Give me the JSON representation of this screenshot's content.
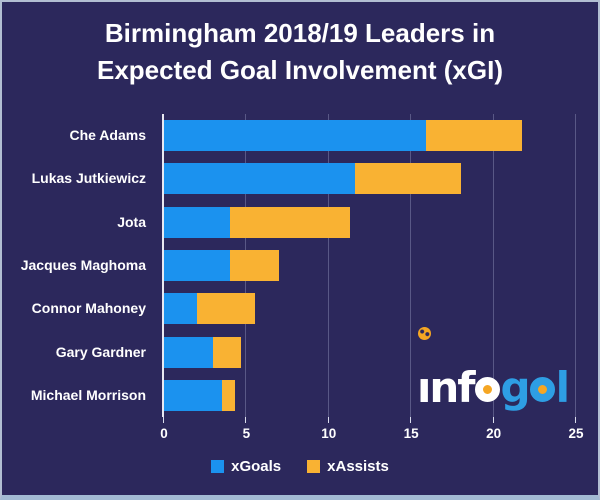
{
  "title": {
    "line1": "Birmingham 2018/19 Leaders in",
    "line2": "Expected Goal Involvement (xGI)"
  },
  "chart_data": {
    "type": "bar",
    "orientation": "horizontal",
    "stacked": true,
    "title": "Birmingham 2018/19 Leaders in Expected Goal Involvement (xGI)",
    "categories": [
      "Che Adams",
      "Lukas Jutkiewicz",
      "Jota",
      "Jacques Maghoma",
      "Connor Mahoney",
      "Gary Gardner",
      "Michael Morrison"
    ],
    "series": [
      {
        "name": "xGoals",
        "color": "#1b92ef",
        "values": [
          15.9,
          11.6,
          4.0,
          4.0,
          2.0,
          3.0,
          3.5
        ]
      },
      {
        "name": "xAssists",
        "color": "#f9b233",
        "values": [
          5.8,
          6.4,
          7.3,
          3.0,
          3.5,
          1.7,
          0.8
        ]
      }
    ],
    "totals": [
      21.7,
      18.0,
      11.3,
      7.0,
      5.5,
      4.7,
      4.3
    ],
    "xlabel": "",
    "ylabel": "",
    "xlim": [
      0,
      25
    ],
    "xticks": [
      0,
      5,
      10,
      15,
      20,
      25
    ],
    "grid": true,
    "legend_position": "bottom"
  },
  "legend": {
    "items": [
      {
        "label": "xGoals",
        "color": "#1b92ef"
      },
      {
        "label": "xAssists",
        "color": "#f9b233"
      }
    ]
  },
  "watermark": {
    "name": "infogol",
    "part_inf": "ınf",
    "part_g": "g",
    "part_l": "l",
    "white_color": "#ffffff",
    "blue_color": "#2e9ee4",
    "ball_color": "#f5a623"
  },
  "colors": {
    "background": "#2c285c",
    "bar_blue": "#1b92ef",
    "bar_orange": "#f9b233",
    "text": "#ffffff",
    "axis_line": "#e8e8f2",
    "frame_border": "#a2bad3"
  }
}
